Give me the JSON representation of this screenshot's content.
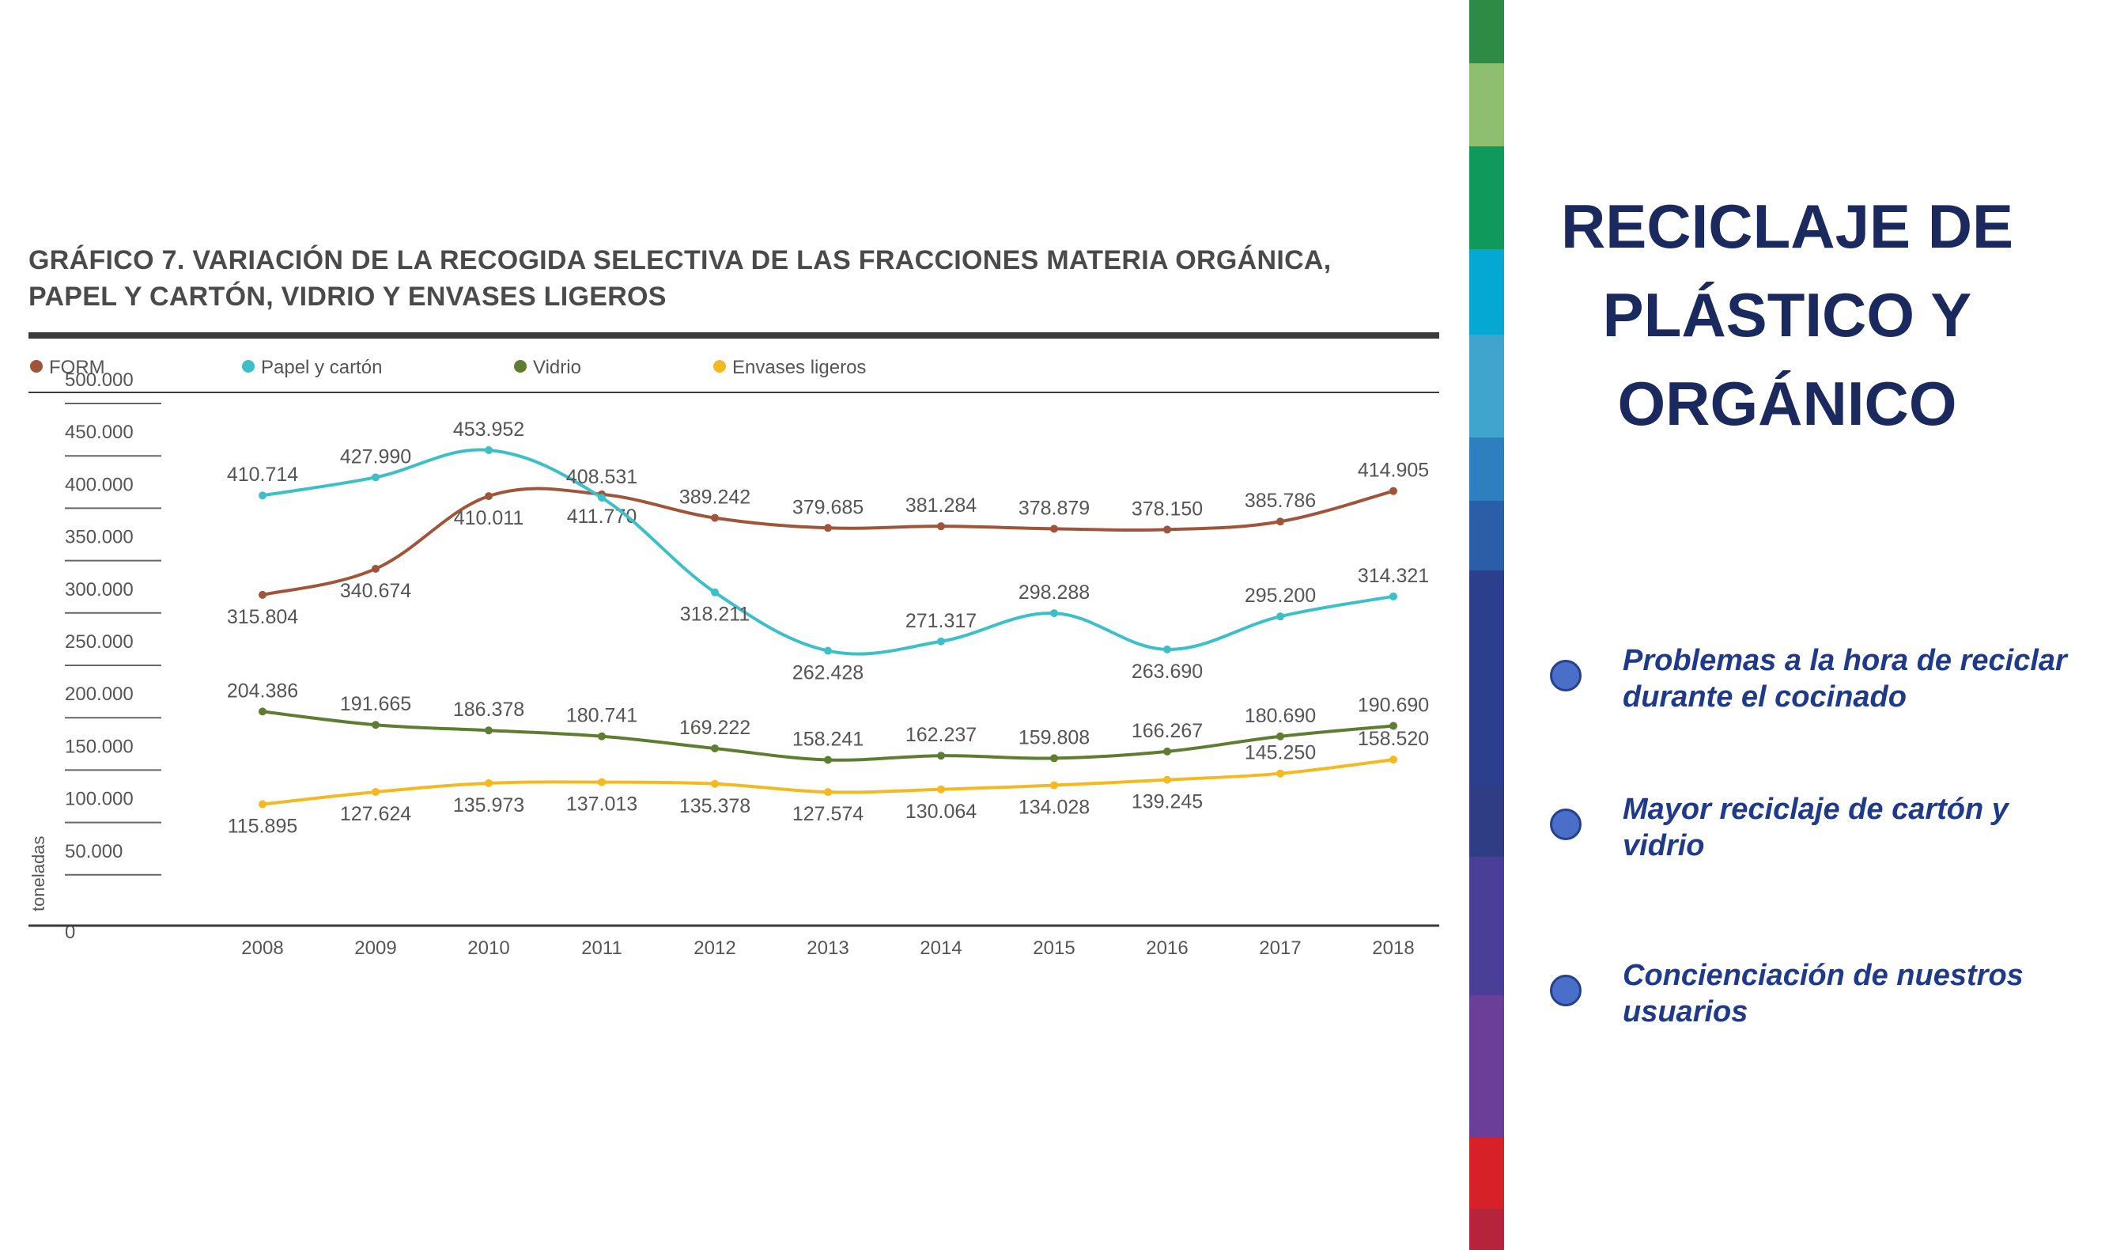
{
  "slide": {
    "title_lines": [
      "RECICLAJE DE",
      "PLÁSTICO Y",
      "ORGÁNICO"
    ],
    "bullets": [
      "Problemas a la hora de reciclar durante el cocinado",
      "Mayor reciclaje de cartón y vidrio",
      "Concienciación de nuestros usuarios"
    ],
    "strip_colors": [
      "#2e8b45",
      "#8dbf6e",
      "#0f9a5c",
      "#05a8d2",
      "#3fa5cd",
      "#2e7fbd",
      "#2a5ea6",
      "#2b3f8c",
      "#2f3d84",
      "#4a3f96",
      "#6b3f98",
      "#d62128",
      "#b5243a",
      "#8e1f2e"
    ]
  },
  "chart_data": {
    "type": "line",
    "title_lines": [
      "GRÁFICO 7. VARIACIÓN DE LA RECOGIDA SELECTIVA DE LAS FRACCIONES MATERIA ORGÁNICA,",
      "PAPEL Y CARTÓN, VIDRIO Y ENVASES LIGEROS"
    ],
    "ylabel": "toneladas",
    "xlabel": "",
    "ylim": [
      0,
      500000
    ],
    "yticks": [
      "0",
      "50.000",
      "100.000",
      "150.000",
      "200.000",
      "250.000",
      "300.000",
      "350.000",
      "400.000",
      "450.000",
      "500.000"
    ],
    "categories": [
      "2008",
      "2009",
      "2010",
      "2011",
      "2012",
      "2013",
      "2014",
      "2015",
      "2016",
      "2017",
      "2018"
    ],
    "legend_position": "top",
    "series": [
      {
        "name": "FORM",
        "color": "#a0553a",
        "values": [
          315804,
          340674,
          410011,
          411770,
          389242,
          379685,
          381284,
          378879,
          378150,
          385786,
          414905
        ],
        "labels": [
          "315.804",
          "340.674",
          "410.011",
          "411.770",
          "389.242",
          "379.685",
          "381.284",
          "378.879",
          "378.150",
          "385.786",
          "414.905"
        ]
      },
      {
        "name": "Papel y cartón",
        "color": "#3dbfc7",
        "values": [
          410714,
          427990,
          453952,
          408531,
          318211,
          262428,
          271317,
          298288,
          263690,
          295200,
          314321
        ],
        "labels": [
          "410.714",
          "427.990",
          "453.952",
          "408.531",
          "318.211",
          "262.428",
          "271.317",
          "298.288",
          "263.690",
          "295.200",
          "314.321"
        ]
      },
      {
        "name": "Vidrio",
        "color": "#5d7d30",
        "values": [
          204386,
          191665,
          186378,
          180741,
          169222,
          158241,
          162237,
          159808,
          166267,
          180690,
          190690
        ],
        "labels": [
          "204.386",
          "191.665",
          "186.378",
          "180.741",
          "169.222",
          "158.241",
          "162.237",
          "159.808",
          "166.267",
          "180.690",
          "190.690"
        ]
      },
      {
        "name": "Envases ligeros",
        "color": "#f5b920",
        "values": [
          115895,
          127624,
          135973,
          137013,
          135378,
          127574,
          130064,
          134028,
          139245,
          145250,
          158520
        ],
        "labels": [
          "115.895",
          "127.624",
          "135.973",
          "137.013",
          "135.378",
          "127.574",
          "130.064",
          "134.028",
          "139.245",
          "145.250",
          "158.520"
        ]
      }
    ]
  }
}
